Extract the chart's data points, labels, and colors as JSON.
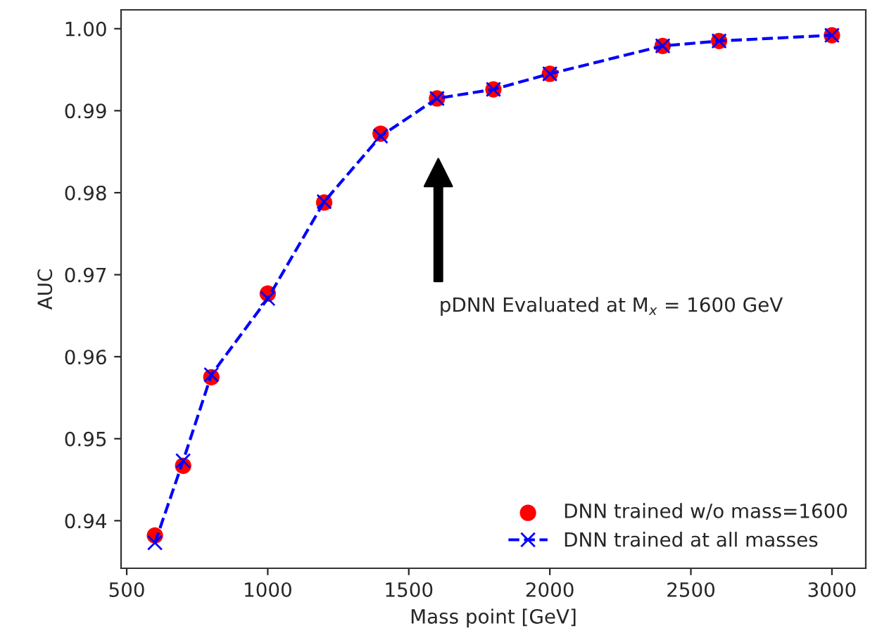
{
  "chart_data": {
    "type": "line",
    "xlabel": "Mass point [GeV]",
    "ylabel": "AUC",
    "x": [
      600,
      700,
      800,
      1000,
      1200,
      1400,
      1600,
      1800,
      2000,
      2400,
      2600,
      3000
    ],
    "series": [
      {
        "name": "DNN trained w/o mass=1600",
        "type": "scatter",
        "color": "#ff0000",
        "marker": "circle",
        "values": [
          0.9382,
          0.9467,
          0.9575,
          0.9677,
          0.9788,
          0.9872,
          0.9915,
          0.9926,
          0.9945,
          0.9979,
          0.9985,
          0.9992
        ]
      },
      {
        "name": "DNN trained at all masses",
        "color": "#0000ff",
        "marker": "cross",
        "line_style": "dashed",
        "values": [
          0.9373,
          0.9473,
          0.9578,
          0.9671,
          0.9789,
          0.9869,
          0.9915,
          0.9926,
          0.9945,
          0.9979,
          0.9985,
          0.9992
        ]
      }
    ],
    "xlim": [
      480,
      3120
    ],
    "xticks": [
      500,
      1000,
      1500,
      2000,
      2500,
      3000
    ],
    "ylim": [
      0.9342,
      1.0023
    ],
    "yticks": [
      {
        "value": 0.94,
        "label": "0.94"
      },
      {
        "value": 0.95,
        "label": "0.95"
      },
      {
        "value": 0.96,
        "label": "0.96"
      },
      {
        "value": 0.97,
        "label": "0.97"
      },
      {
        "value": 0.98,
        "label": "0.98"
      },
      {
        "value": 0.99,
        "label": "0.99"
      },
      {
        "value": 1.0,
        "label": "1.00"
      }
    ],
    "annotations": [
      "pDNN Evaluated at M$_{x}$ = 1600 GeV"
    ],
    "legend": "bottom right",
    "grid": false
  }
}
